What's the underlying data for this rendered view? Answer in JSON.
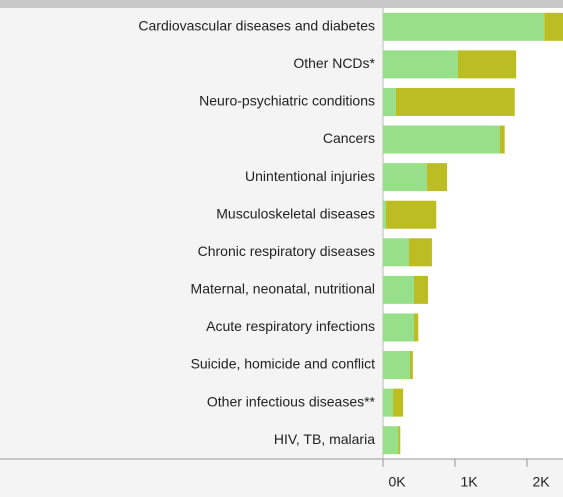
{
  "chart_data": {
    "type": "stacked-barh",
    "categories": [
      "Cardiovascular diseases and diabetes",
      "Other NCDs*",
      "Neuro-psychiatric conditions",
      "Cancers",
      "Unintentional injuries",
      "Musculoskeletal diseases",
      "Chronic respiratory diseases",
      "Maternal, neonatal, nutritional",
      "Acute respiratory infections",
      "Suicide, homicide and conflict",
      "Other infectious diseases**",
      "HIV, TB, malaria"
    ],
    "series": [
      {
        "color": "#98df8a",
        "values": [
          2240,
          1040,
          180,
          1620,
          610,
          40,
          360,
          430,
          430,
          375,
          140,
          210
        ]
      },
      {
        "color": "#bcbd22",
        "values": [
          280,
          810,
          1650,
          70,
          280,
          700,
          320,
          195,
          60,
          40,
          140,
          30
        ]
      }
    ],
    "xlim": [
      0,
      2500
    ],
    "xticks": [
      {
        "value": 0,
        "label": "0K"
      },
      {
        "value": 1000,
        "label": "1K"
      },
      {
        "value": 2000,
        "label": "2K"
      }
    ]
  }
}
